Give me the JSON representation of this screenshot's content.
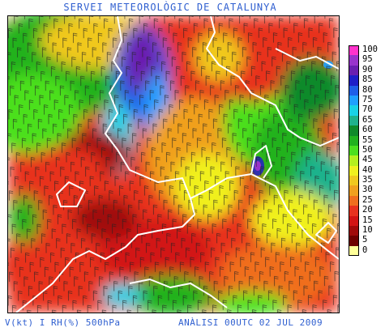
{
  "title": "SERVEI METEOROLÒGIC DE CATALUNYA",
  "footer": {
    "left": "V(kt) I RH(%) 500hPa",
    "right": "ANÀLISI 00UTC 02 JUL 2009"
  },
  "legend": {
    "steps": [
      {
        "label": "100",
        "color": "#ff33cc"
      },
      {
        "label": "95",
        "color": "#9933cc"
      },
      {
        "label": "90",
        "color": "#6a1fb0"
      },
      {
        "label": "85",
        "color": "#1f1fc8"
      },
      {
        "label": "80",
        "color": "#1f5fe8"
      },
      {
        "label": "75",
        "color": "#1fa0ff"
      },
      {
        "label": "70",
        "color": "#19d2e6"
      },
      {
        "label": "65",
        "color": "#1fb28c"
      },
      {
        "label": "60",
        "color": "#0f8a2a"
      },
      {
        "label": "55",
        "color": "#21b21f"
      },
      {
        "label": "50",
        "color": "#4be01f"
      },
      {
        "label": "45",
        "color": "#b4f01f"
      },
      {
        "label": "40",
        "color": "#f0f01f"
      },
      {
        "label": "35",
        "color": "#f0c81f"
      },
      {
        "label": "30",
        "color": "#f0a01f"
      },
      {
        "label": "25",
        "color": "#f06e1f"
      },
      {
        "label": "20",
        "color": "#e8321f"
      },
      {
        "label": "15",
        "color": "#d21414"
      },
      {
        "label": "10",
        "color": "#a00a0a"
      },
      {
        "label": "5",
        "color": "#6e0000"
      },
      {
        "label": "0",
        "color": "#ffff99"
      }
    ]
  }
}
